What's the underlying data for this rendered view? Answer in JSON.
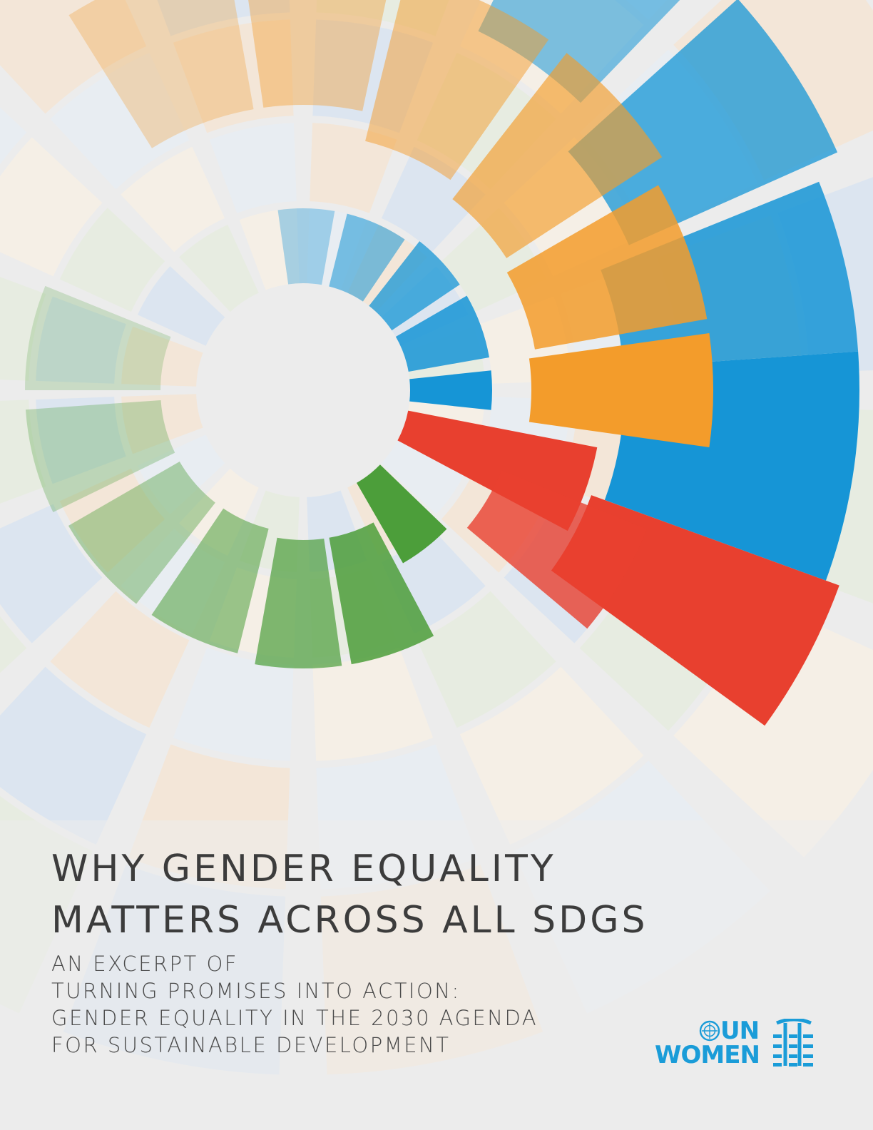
{
  "document": {
    "title_lines": [
      "WHY GENDER EQUALITY",
      "MATTERS ACROSS ALL SDGS"
    ],
    "subtitle_lines": [
      "AN EXCERPT OF",
      "TURNING PROMISES INTO ACTION:",
      "GENDER EQUALITY IN THE 2030 AGENDA",
      "FOR SUSTAINABLE DEVELOPMENT"
    ]
  },
  "logo": {
    "line1": "UN",
    "line2": "WOMEN",
    "color": "#1a9cd8",
    "emblem_icon": "un-emblem-icon",
    "mark_icon": "un-women-mark-icon"
  },
  "artwork": {
    "description_icon": "radial-sdg-wheel-graphic",
    "colors": {
      "blue": "#1695d6",
      "orange": "#f39c2b",
      "red": "#e8402f",
      "green": "#4c9e3a",
      "background": "#ececec"
    }
  }
}
